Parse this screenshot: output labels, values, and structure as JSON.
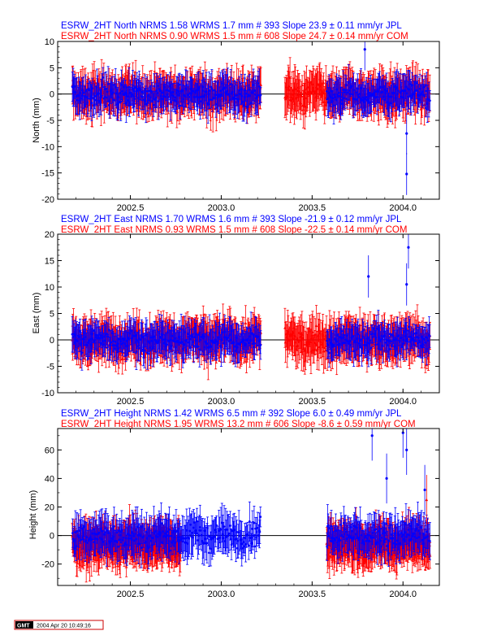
{
  "chart_data": [
    {
      "type": "scatter",
      "panel": "north",
      "ylabel": "North (mm)",
      "ylim": [
        -20,
        10
      ],
      "yticks": [
        -20,
        -15,
        -10,
        -5,
        0,
        5,
        10
      ],
      "xlim": [
        2002.1,
        2004.2
      ],
      "xticks": [
        2002.5,
        2003.0,
        2003.5,
        2004.0
      ],
      "xtick_labels": [
        "2002.5",
        "2003.0",
        "2003.5",
        "2004.0"
      ],
      "zero_line": true,
      "legend_position": "top-left",
      "series": [
        {
          "name": "JPL",
          "header": "ESRW_2HT North NRMS 1.58 WRMS  1.7 mm # 393 Slope   23.9 ±  0.11 mm/yr JPL",
          "color": "#0000ff",
          "marker": "circle",
          "n": 393,
          "nrms": 1.58,
          "wrms_mm": 1.7,
          "slope_mm_yr": 23.9,
          "slope_sigma": 0.11
        },
        {
          "name": "COM",
          "header": "ESRW_2HT North NRMS 0.90 WRMS  1.5 mm # 608 Slope   24.7 ±  0.14 mm/yr COM",
          "color": "#ff0000",
          "marker": "triangle",
          "n": 608,
          "nrms": 0.9,
          "wrms_mm": 1.5,
          "slope_mm_yr": 24.7,
          "slope_sigma": 0.14
        }
      ],
      "data_spans": {
        "JPL": [
          [
            2002.18,
            2003.22
          ],
          [
            2003.58,
            2004.15
          ]
        ],
        "COM": [
          [
            2002.18,
            2003.22
          ],
          [
            2003.35,
            2004.15
          ]
        ]
      },
      "outliers": [
        {
          "series": "JPL",
          "x": 2004.02,
          "y": -15.2
        },
        {
          "series": "JPL",
          "x": 2004.02,
          "y": -7.5
        },
        {
          "series": "JPL",
          "x": 2003.79,
          "y": 8.5
        }
      ]
    },
    {
      "type": "scatter",
      "panel": "east",
      "ylabel": "East (mm)",
      "ylim": [
        -10,
        20
      ],
      "yticks": [
        -10,
        -5,
        0,
        5,
        10,
        15,
        20
      ],
      "xlim": [
        2002.1,
        2004.2
      ],
      "xticks": [
        2002.5,
        2003.0,
        2003.5,
        2004.0
      ],
      "xtick_labels": [
        "2002.5",
        "2003.0",
        "2003.5",
        "2004.0"
      ],
      "zero_line": true,
      "legend_position": "top-left",
      "series": [
        {
          "name": "JPL",
          "header": "ESRW_2HT East NRMS 1.70 WRMS  1.6 mm # 393 Slope  -21.9 ±  0.12 mm/yr JPL",
          "color": "#0000ff",
          "marker": "circle",
          "n": 393,
          "nrms": 1.7,
          "wrms_mm": 1.6,
          "slope_mm_yr": -21.9,
          "slope_sigma": 0.12
        },
        {
          "name": "COM",
          "header": "ESRW_2HT East NRMS 0.93 WRMS  1.5 mm # 608 Slope  -22.5 ±  0.14 mm/yr COM",
          "color": "#ff0000",
          "marker": "triangle",
          "n": 608,
          "nrms": 0.93,
          "wrms_mm": 1.5,
          "slope_mm_yr": -22.5,
          "slope_sigma": 0.14
        }
      ],
      "data_spans": {
        "JPL": [
          [
            2002.18,
            2003.22
          ],
          [
            2003.58,
            2004.15
          ]
        ],
        "COM": [
          [
            2002.18,
            2003.22
          ],
          [
            2003.35,
            2004.15
          ]
        ]
      },
      "outliers": [
        {
          "series": "JPL",
          "x": 2004.03,
          "y": 17.5
        },
        {
          "series": "JPL",
          "x": 2003.81,
          "y": 12.0
        },
        {
          "series": "JPL",
          "x": 2004.02,
          "y": 10.5
        }
      ]
    },
    {
      "type": "scatter",
      "panel": "height",
      "ylabel": "Height (mm)",
      "ylim": [
        -35,
        75
      ],
      "yticks": [
        -20,
        0,
        20,
        40,
        60
      ],
      "xlim": [
        2002.1,
        2004.2
      ],
      "xticks": [
        2002.5,
        2003.0,
        2003.5,
        2004.0
      ],
      "xtick_labels": [
        "2002.5",
        "2003.0",
        "2003.5",
        "2004.0"
      ],
      "zero_line": true,
      "legend_position": "top-left",
      "series": [
        {
          "name": "JPL",
          "header": "ESRW_2HT Height NRMS 1.42 WRMS  6.5 mm # 392 Slope    6.0 ±  0.49 mm/yr JPL",
          "color": "#0000ff",
          "marker": "circle",
          "n": 392,
          "nrms": 1.42,
          "wrms_mm": 6.5,
          "slope_mm_yr": 6.0,
          "slope_sigma": 0.49
        },
        {
          "name": "COM",
          "header": "ESRW_2HT Height NRMS 1.95 WRMS 13.2 mm # 606 Slope   -8.6 ±  0.59 mm/yr COM",
          "color": "#ff0000",
          "marker": "triangle",
          "n": 606,
          "nrms": 1.95,
          "wrms_mm": 13.2,
          "slope_mm_yr": -8.6,
          "slope_sigma": 0.59
        }
      ],
      "data_spans": {
        "JPL": [
          [
            2002.18,
            2003.22
          ],
          [
            2003.58,
            2004.15
          ]
        ],
        "COM": [
          [
            2002.18,
            2002.78
          ],
          [
            2003.58,
            2004.15
          ]
        ]
      },
      "outliers": [
        {
          "series": "JPL",
          "x": 2003.83,
          "y": 70
        },
        {
          "series": "JPL",
          "x": 2004.0,
          "y": 72
        },
        {
          "series": "JPL",
          "x": 2004.02,
          "y": 60
        },
        {
          "series": "JPL",
          "x": 2003.91,
          "y": 40
        },
        {
          "series": "JPL",
          "x": 2004.12,
          "y": 32
        },
        {
          "series": "COM",
          "x": 2004.13,
          "y": 25
        }
      ]
    }
  ],
  "footer": {
    "logo": "GMT",
    "timestamp": "2004 Apr 20 10:49:16"
  }
}
